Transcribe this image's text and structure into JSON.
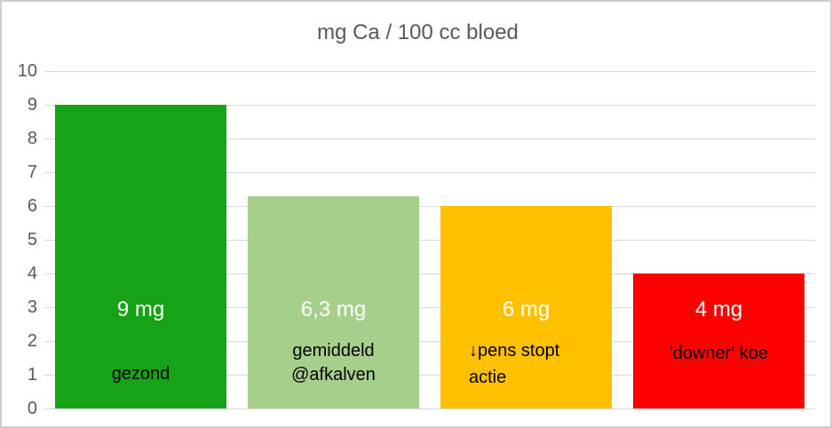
{
  "title": "mg Ca / 100 cc bloed",
  "y_axis": {
    "ticks": [
      "10",
      "9",
      "8",
      "7",
      "6",
      "5",
      "4",
      "3",
      "2",
      "1",
      "0"
    ]
  },
  "bars": [
    {
      "value": 9,
      "value_label": "9 mg",
      "caption_lines": [
        "gezond"
      ],
      "color": "#17A317"
    },
    {
      "value": 6.3,
      "value_label": "6,3 mg",
      "caption_lines": [
        "gemiddeld",
        "@afkalven"
      ],
      "color": "#A6CF8C"
    },
    {
      "value": 6,
      "value_label": "6 mg",
      "caption_lines": [
        "↓pens stopt",
        "actie"
      ],
      "color": "#FFC000"
    },
    {
      "value": 4,
      "value_label": "4 mg",
      "caption_lines": [
        "'downer' koe"
      ],
      "color": "#FF0000"
    }
  ],
  "colors": {
    "title": "#595959",
    "axis_labels": "#595959",
    "gridline": "#D9D9D9",
    "border": "#CFCDCD",
    "value_label": "#FFFFFF",
    "caption": "#000000"
  },
  "chart_data": {
    "type": "bar",
    "title": "mg Ca / 100 cc bloed",
    "categories": [
      "gezond",
      "gemiddeld @afkalven",
      "↓pens stopt actie",
      "'downer' koe"
    ],
    "values": [
      9,
      6.3,
      6,
      4
    ],
    "value_labels": [
      "9 mg",
      "6,3 mg",
      "6 mg",
      "4 mg"
    ],
    "bar_colors": [
      "#17A317",
      "#A6CF8C",
      "#FFC000",
      "#FF0000"
    ],
    "xlabel": "",
    "ylabel": "",
    "ylim": [
      0,
      10
    ],
    "ytick_interval": 1,
    "grid": true,
    "legend": false
  }
}
